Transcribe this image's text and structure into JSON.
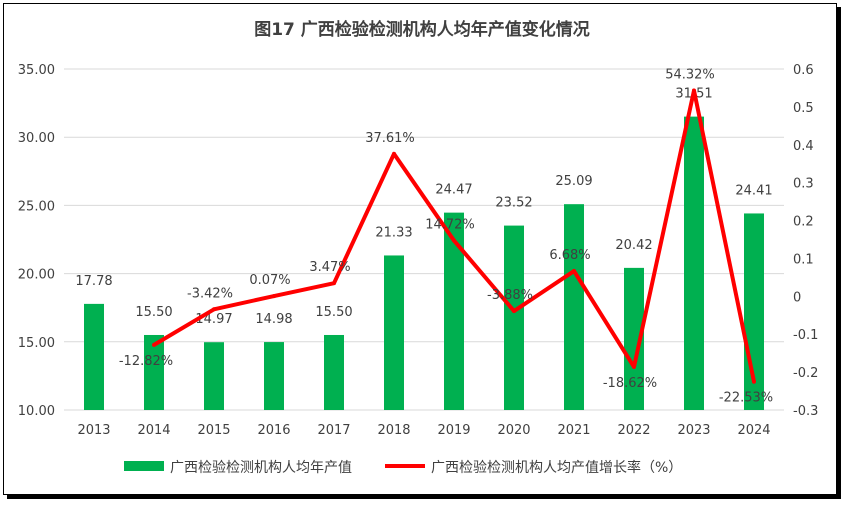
{
  "chart_data": {
    "type": "bar+line",
    "title": "图17  广西检验检测机构人均年产值变化情况",
    "categories": [
      "2013",
      "2014",
      "2015",
      "2016",
      "2017",
      "2018",
      "2019",
      "2020",
      "2021",
      "2022",
      "2023",
      "2024"
    ],
    "series": [
      {
        "name": "广西检验检测机构人均年产值",
        "type": "bar",
        "axis": "left",
        "color": "#00B050",
        "values": [
          17.78,
          15.5,
          14.97,
          14.98,
          15.5,
          21.33,
          24.47,
          23.52,
          25.09,
          20.42,
          31.51,
          24.41
        ],
        "labels": [
          "17.78",
          "15.50",
          "14.97",
          "14.98",
          "15.50",
          "21.33",
          "24.47",
          "23.52",
          "25.09",
          "20.42",
          "31.51",
          "24.41"
        ]
      },
      {
        "name": "广西检验检测机构人均产值增长率（%）",
        "type": "line",
        "axis": "right",
        "color": "#FF0000",
        "values": [
          null,
          -0.1282,
          -0.0342,
          0.0007,
          0.0347,
          0.3761,
          0.1472,
          -0.0388,
          0.0668,
          -0.1862,
          0.5432,
          -0.2253
        ],
        "labels": [
          null,
          "-12.82%",
          "-3.42%",
          "0.07%",
          "3.47%",
          "37.61%",
          "14.72%",
          "-3.88%",
          "6.68%",
          "-18.62%",
          "54.32%",
          "-22.53%"
        ]
      }
    ],
    "y_left": {
      "range": [
        10,
        35
      ],
      "ticks": [
        "10.00",
        "15.00",
        "20.00",
        "25.00",
        "30.00",
        "35.00"
      ]
    },
    "y_right": {
      "range": [
        -0.3,
        0.6
      ],
      "ticks": [
        "-0.3",
        "-0.2",
        "-0.1",
        "0",
        "0.1",
        "0.2",
        "0.3",
        "0.4",
        "0.5",
        "0.6"
      ]
    },
    "grid": true,
    "legend": "bottom"
  }
}
